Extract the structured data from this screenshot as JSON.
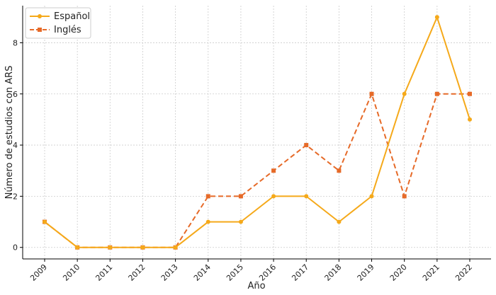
{
  "chart_data": {
    "type": "line",
    "title": "",
    "xlabel": "Año",
    "ylabel": "Número de estudios con ARS",
    "x": [
      2009,
      2010,
      2011,
      2012,
      2013,
      2014,
      2015,
      2016,
      2017,
      2018,
      2019,
      2020,
      2021,
      2022
    ],
    "x_ticks": [
      "2009",
      "2010",
      "2011",
      "2012",
      "2013",
      "2014",
      "2015",
      "2016",
      "2017",
      "2018",
      "2019",
      "2020",
      "2021",
      "2022"
    ],
    "y_ticks": [
      0,
      2,
      4,
      6,
      8
    ],
    "ylim": [
      -0.45,
      9.45
    ],
    "grid": true,
    "legend_position": "top-left",
    "series": [
      {
        "name": "Español",
        "color": "#f5a91a",
        "style": "solid",
        "marker": "circle",
        "values": [
          1,
          0,
          0,
          0,
          0,
          1,
          1,
          2,
          2,
          1,
          2,
          6,
          9,
          5
        ]
      },
      {
        "name": "Inglés",
        "color": "#e66a28",
        "style": "dashed",
        "marker": "square",
        "values": [
          1,
          0,
          0,
          0,
          0,
          2,
          2,
          3,
          4,
          3,
          6,
          2,
          6,
          6
        ]
      }
    ]
  }
}
